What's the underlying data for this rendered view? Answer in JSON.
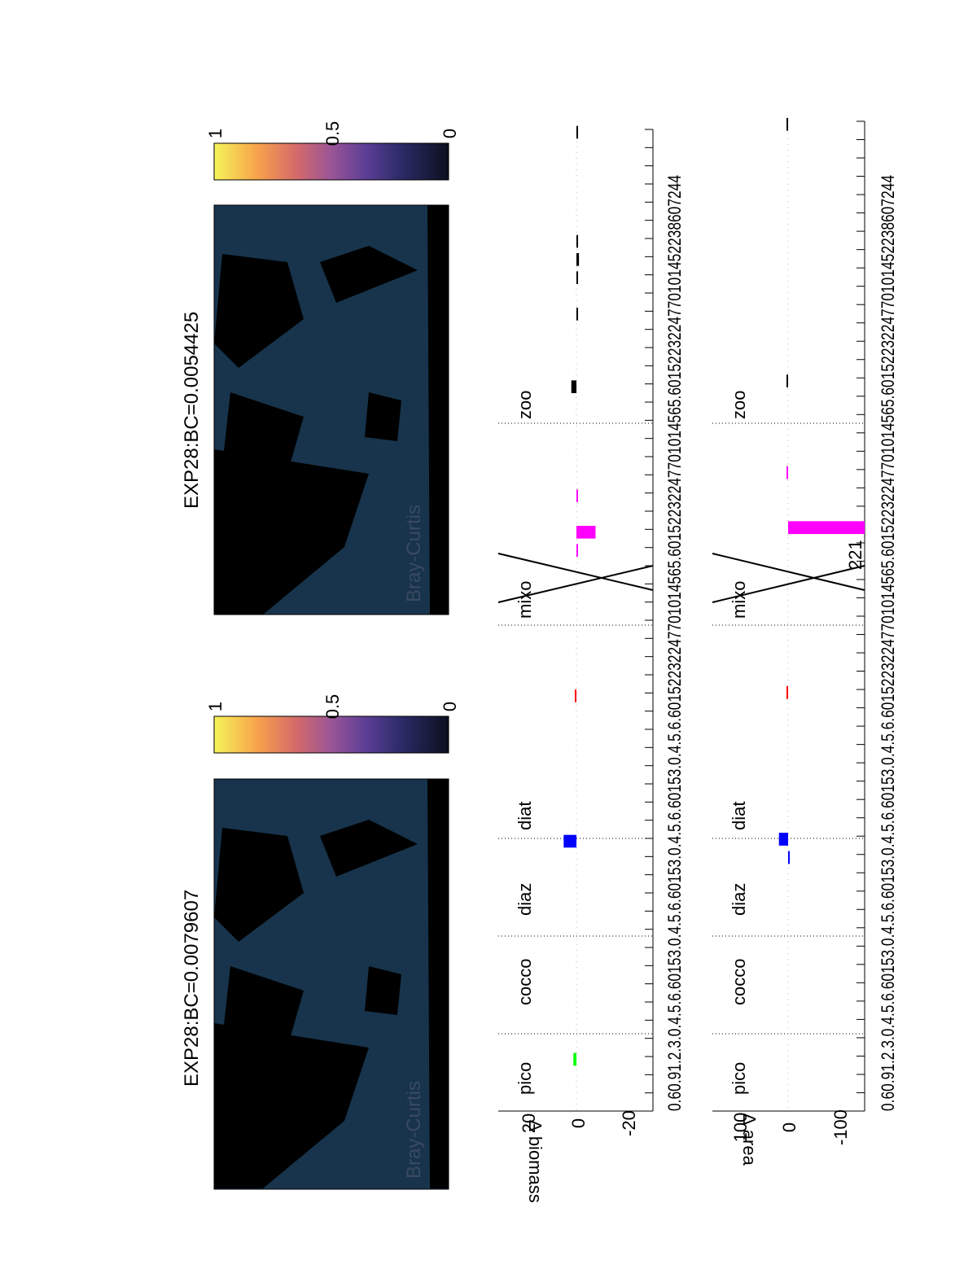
{
  "colors": {
    "ocean": "#17344c",
    "land": "#000000",
    "pico": "#00ff00",
    "cocco": "#ffff00",
    "diaz": "#0000ff",
    "diat": "#00ffff",
    "red": "#ff0000",
    "mixo": "#ff00ff",
    "zoo": "#000000"
  },
  "maps": [
    {
      "title": "EXP28:BC=0.0079607",
      "label": "Bray-Curtis"
    },
    {
      "title": "EXP28:BC=0.0054425",
      "label": "Bray-Curtis"
    }
  ],
  "colorbars": [
    {
      "ticks": [
        "1",
        "0.5",
        "0"
      ]
    },
    {
      "ticks": [
        "1",
        "0.5",
        "0"
      ]
    }
  ],
  "groups": [
    "pico",
    "cocco",
    "diaz",
    "diat",
    "mixo",
    "zoo"
  ],
  "row_labels": [
    "0.60.91.2.3.0.4.5.6.60153.0.4.5.6.60153.0.4.5.6.60153.0.4.5.6.60152232247701014565.60152232247701014565.6015223224770101452238607244",
    "0.60.91.2.3.0.4.5.6.60153.0.4.5.6.60153.0.4.5.6.60153.0.4.5.6.60152232247701014565.60152232247701014565.6015223224770101452238607244"
  ],
  "chart_data": [
    {
      "type": "bar",
      "ylabel": "∆ biomass",
      "ylim": [
        -30,
        30
      ],
      "yticks": [
        "20",
        "0",
        "-20"
      ],
      "categories": [
        "pico",
        "cocco",
        "diaz",
        "diat",
        "mixo",
        "zoo"
      ],
      "bars": [
        {
          "group": "pico",
          "index": 1,
          "value": 1.2,
          "color": "pico"
        },
        {
          "group": "diaz",
          "index": 13,
          "value": 5.0,
          "color": "diaz"
        },
        {
          "group": "diat",
          "index": 21,
          "value": 0.3,
          "color": "red"
        },
        {
          "group": "mixo",
          "index": 30,
          "value": -7.5,
          "color": "mixo"
        },
        {
          "group": "mixo",
          "index": 29,
          "value": -0.6,
          "color": "mixo"
        },
        {
          "group": "mixo",
          "index": 32,
          "value": -0.6,
          "color": "mixo"
        },
        {
          "group": "zoo",
          "index": 38,
          "value": 2.0,
          "color": "zoo"
        },
        {
          "group": "zoo",
          "index": 42,
          "value": -0.5,
          "color": "zoo"
        },
        {
          "group": "zoo",
          "index": 44,
          "value": -0.5,
          "color": "zoo"
        },
        {
          "group": "zoo",
          "index": 45,
          "value": -1.0,
          "color": "zoo"
        },
        {
          "group": "zoo",
          "index": 46,
          "value": -0.5,
          "color": "zoo"
        },
        {
          "group": "zoo",
          "index": 52,
          "value": -0.5,
          "color": "zoo"
        }
      ],
      "annotation": ""
    },
    {
      "type": "bar",
      "ylabel": "∆ area",
      "ylim": [
        -150,
        150
      ],
      "yticks": [
        "100",
        "0",
        "-100"
      ],
      "categories": [
        "pico",
        "cocco",
        "diaz",
        "diat",
        "mixo",
        "zoo"
      ],
      "bars": [
        {
          "group": "diaz",
          "index": 12,
          "value": -2.0,
          "color": "diaz"
        },
        {
          "group": "diaz",
          "index": 13,
          "value": 18.0,
          "color": "diaz"
        },
        {
          "group": "diat",
          "index": 21,
          "value": 1.0,
          "color": "red"
        },
        {
          "group": "mixo",
          "index": 30,
          "value": -150,
          "color": "mixo"
        },
        {
          "group": "mixo",
          "index": 33,
          "value": 2.0,
          "color": "mixo"
        },
        {
          "group": "zoo",
          "index": 38,
          "value": 2.0,
          "color": "zoo"
        },
        {
          "group": "zoo",
          "index": 52,
          "value": 2.0,
          "color": "zoo"
        }
      ],
      "annotation": "221"
    }
  ]
}
